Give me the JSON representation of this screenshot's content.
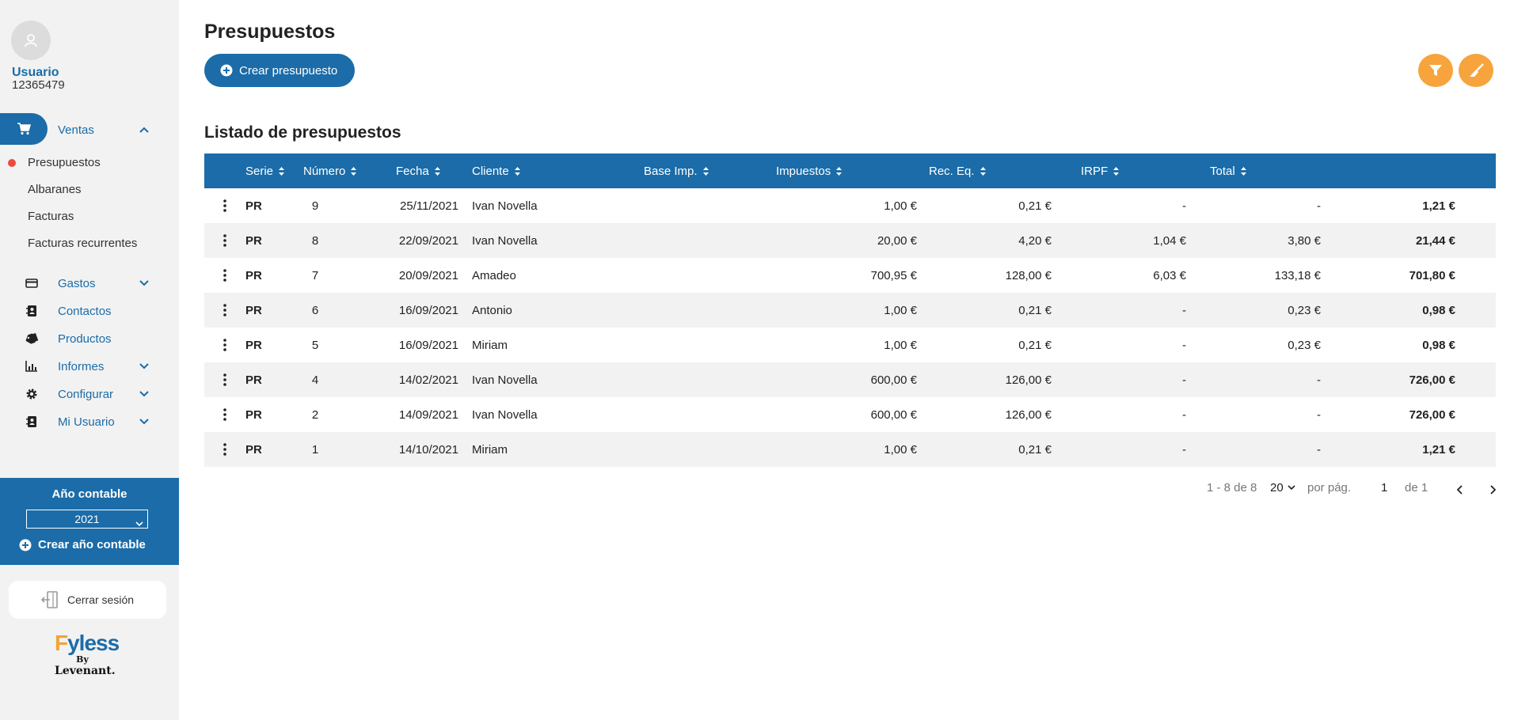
{
  "user": {
    "name": "Usuario",
    "id": "12365479"
  },
  "nav": {
    "ventas": {
      "label": "Ventas",
      "sub": [
        "Presupuestos",
        "Albaranes",
        "Facturas",
        "Facturas recurrentes"
      ]
    },
    "items": [
      {
        "label": "Gastos",
        "icon": "card-icon",
        "chevron": true
      },
      {
        "label": "Contactos",
        "icon": "contacts-icon",
        "chevron": false
      },
      {
        "label": "Productos",
        "icon": "tag-icon",
        "chevron": false
      },
      {
        "label": "Informes",
        "icon": "chart-icon",
        "chevron": true
      },
      {
        "label": "Configurar",
        "icon": "gear-icon",
        "chevron": true
      },
      {
        "label": "Mi Usuario",
        "icon": "user-card-icon",
        "chevron": true
      }
    ]
  },
  "year": {
    "title": "Año contable",
    "selected": "2021",
    "create_label": "Crear año contable"
  },
  "logout_label": "Cerrar sesión",
  "brand": {
    "f": "F",
    "rest": "yless",
    "by": "By",
    "company": "Levenant."
  },
  "page": {
    "title": "Presupuestos",
    "create_button": "Crear presupuesto",
    "section_title": "Listado de presupuestos"
  },
  "table": {
    "headers": [
      "Serie",
      "Número",
      "Fecha",
      "Cliente",
      "Base Imp.",
      "Impuestos",
      "Rec. Eq.",
      "IRPF",
      "Total"
    ],
    "rows": [
      {
        "serie": "PR",
        "numero": "9",
        "fecha": "25/11/2021",
        "cliente": "Ivan Novella",
        "base": "1,00 €",
        "impuestos": "0,21 €",
        "rec": "-",
        "irpf": "-",
        "total": "1,21 €"
      },
      {
        "serie": "PR",
        "numero": "8",
        "fecha": "22/09/2021",
        "cliente": "Ivan Novella",
        "base": "20,00 €",
        "impuestos": "4,20 €",
        "rec": "1,04 €",
        "irpf": "3,80 €",
        "total": "21,44 €"
      },
      {
        "serie": "PR",
        "numero": "7",
        "fecha": "20/09/2021",
        "cliente": "Amadeo",
        "base": "700,95 €",
        "impuestos": "128,00 €",
        "rec": "6,03 €",
        "irpf": "133,18 €",
        "total": "701,80 €"
      },
      {
        "serie": "PR",
        "numero": "6",
        "fecha": "16/09/2021",
        "cliente": "Antonio",
        "base": "1,00 €",
        "impuestos": "0,21 €",
        "rec": "-",
        "irpf": "0,23 €",
        "total": "0,98 €"
      },
      {
        "serie": "PR",
        "numero": "5",
        "fecha": "16/09/2021",
        "cliente": "Miriam",
        "base": "1,00 €",
        "impuestos": "0,21 €",
        "rec": "-",
        "irpf": "0,23 €",
        "total": "0,98 €"
      },
      {
        "serie": "PR",
        "numero": "4",
        "fecha": "14/02/2021",
        "cliente": "Ivan Novella",
        "base": "600,00 €",
        "impuestos": "126,00 €",
        "rec": "-",
        "irpf": "-",
        "total": "726,00 €"
      },
      {
        "serie": "PR",
        "numero": "2",
        "fecha": "14/09/2021",
        "cliente": "Ivan Novella",
        "base": "600,00 €",
        "impuestos": "126,00 €",
        "rec": "-",
        "irpf": "-",
        "total": "726,00 €"
      },
      {
        "serie": "PR",
        "numero": "1",
        "fecha": "14/10/2021",
        "cliente": "Miriam",
        "base": "1,00 €",
        "impuestos": "0,21 €",
        "rec": "-",
        "irpf": "-",
        "total": "1,21 €"
      }
    ]
  },
  "pagination": {
    "range": "1 - 8 de 8",
    "per_page": "20",
    "per_page_label": "por pág.",
    "page": "1",
    "of": "de 1"
  },
  "colors": {
    "primary": "#1b6ca8",
    "accent": "#f6a43b",
    "active_dot": "#e84c3d"
  }
}
